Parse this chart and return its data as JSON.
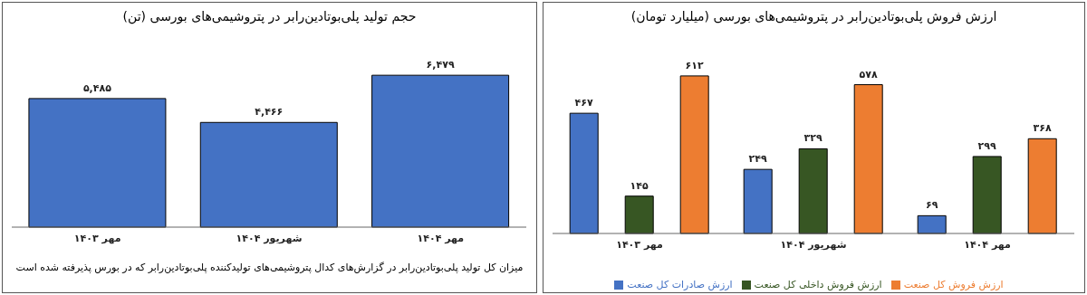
{
  "chart_data": [
    {
      "type": "bar",
      "title": "حجم تولید پلی‌بوتادین‌رابر در پتروشیمی‌های بورسی (تن)",
      "categories": [
        "مهر ۱۴۰۳",
        "شهریور ۱۴۰۴",
        "مهر ۱۴۰۴"
      ],
      "series": [
        {
          "color": "#4472c4",
          "values": [
            5485,
            4466,
            6479
          ],
          "value_labels": [
            "۵,۴۸۵",
            "۴,۴۶۶",
            "۶,۴۷۹"
          ]
        }
      ],
      "annotations": [
        "میزان کل تولید پلی‌بوتادین‌رابر در گزارش‌های کدال پتروشیمی‌های تولیدکننده پلی‌بوتادین‌رابر که در بورس پذیرفته شده است"
      ],
      "grid": false,
      "legend": false
    },
    {
      "type": "bar",
      "title": "ارزش فروش پلی‌بوتادین‌رابر در پتروشیمی‌های بورسی (میلیارد تومان)",
      "categories": [
        "مهر ۱۴۰۳",
        "شهریور ۱۴۰۴",
        "مهر ۱۴۰۴"
      ],
      "series": [
        {
          "name": "ارزش صادرات کل صنعت",
          "color": "#4472c4",
          "values": [
            467,
            249,
            69
          ],
          "value_labels": [
            "۴۶۷",
            "۲۴۹",
            "۶۹"
          ]
        },
        {
          "name": "ارزش فروش داخلی کل صنعت",
          "color": "#375623",
          "values": [
            145,
            329,
            299
          ],
          "value_labels": [
            "۱۴۵",
            "۳۲۹",
            "۲۹۹"
          ]
        },
        {
          "name": "ارزش فروش کل صنعت",
          "color": "#ed7d31",
          "values": [
            612,
            578,
            368
          ],
          "value_labels": [
            "۶۱۲",
            "۵۷۸",
            "۳۶۸"
          ]
        }
      ],
      "grid": false,
      "legend": "bottom"
    }
  ]
}
